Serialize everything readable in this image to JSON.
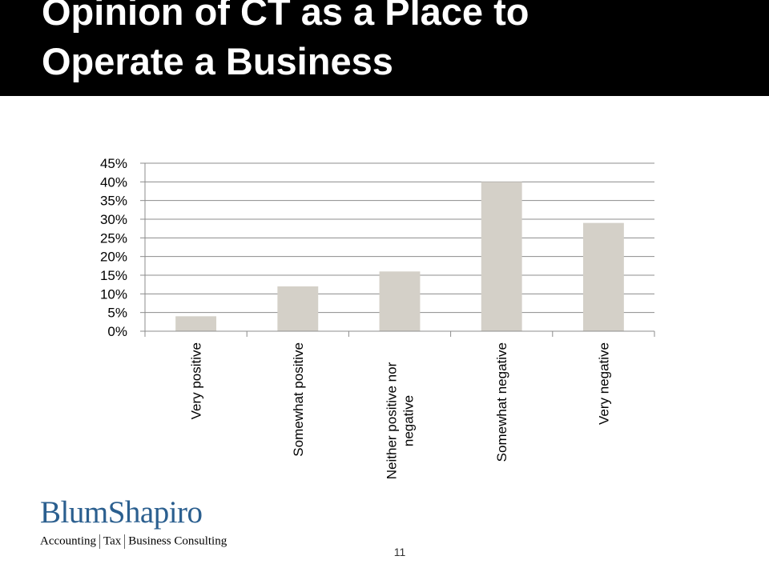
{
  "slide": {
    "title_line1": "Opinion of CT as a Place to",
    "title_line2": "Operate a Business",
    "page_number": "11"
  },
  "logo": {
    "name_part1": "Blum",
    "name_part2": "Shapiro",
    "tagline": [
      "Accounting",
      "Tax",
      "Business Consulting"
    ]
  },
  "colors": {
    "title_bg": "#000000",
    "title_text": "#ffffff",
    "bar_fill": "#d4d0c8",
    "gridline": "#8c8c8c",
    "logo_blue": "#2b5f8f"
  },
  "chart_data": {
    "type": "bar",
    "categories": [
      [
        "Very positive"
      ],
      [
        "Somewhat positive"
      ],
      [
        "Neither positive nor",
        "negative"
      ],
      [
        "Somewhat negative"
      ],
      [
        "Very negative"
      ]
    ],
    "series": [
      {
        "values": [
          4,
          12,
          16,
          40,
          29
        ]
      }
    ],
    "yticks": [
      "0%",
      "5%",
      "10%",
      "15%",
      "20%",
      "25%",
      "30%",
      "35%",
      "40%",
      "45%"
    ],
    "ylim": [
      0,
      45
    ],
    "ystep": 5,
    "grid": true,
    "legend": "none",
    "title": "",
    "xlabel": "",
    "ylabel": ""
  }
}
